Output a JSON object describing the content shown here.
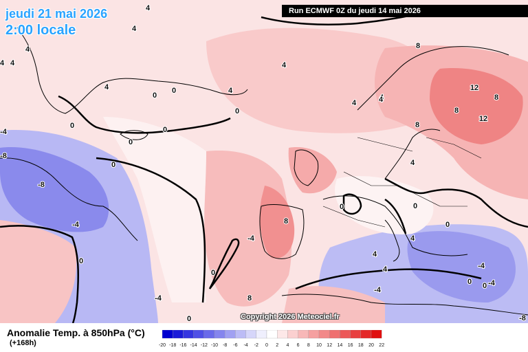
{
  "header": {
    "date": "jeudi 21 mai 2026",
    "time": "2:00 locale",
    "run": "Run ECMWF 0Z du jeudi 14 mai 2026"
  },
  "footer": {
    "title": "Anomalie Temp. à 850hPa (°C)",
    "lead": "(+168h)",
    "copyright": "Copyright 2026 Meteociel.fr"
  },
  "scale": {
    "ticks": [
      "-20",
      "-18",
      "-16",
      "-14",
      "-12",
      "-10",
      "-8",
      "-6",
      "-4",
      "-2",
      "0",
      "2",
      "4",
      "6",
      "8",
      "10",
      "12",
      "14",
      "16",
      "18",
      "20",
      "22"
    ],
    "colors": [
      "#0000d0",
      "#1a1ad8",
      "#3535e0",
      "#5050e6",
      "#6a6aea",
      "#8585ee",
      "#a0a0f2",
      "#bcbcf6",
      "#d6d6fa",
      "#efeffd",
      "#ffffff",
      "#fde8e8",
      "#fbd0d0",
      "#f8b8b8",
      "#f5a0a0",
      "#f28888",
      "#ef7070",
      "#ec5858",
      "#e84040",
      "#e42828",
      "#e01010"
    ]
  },
  "map": {
    "labels": [
      {
        "text": "4"
      },
      {
        "text": "4"
      },
      {
        "text": "4"
      },
      {
        "text": "4"
      },
      {
        "text": "4"
      },
      {
        "text": "4"
      },
      {
        "text": "4"
      },
      {
        "text": "4"
      },
      {
        "text": "4"
      },
      {
        "text": "4"
      },
      {
        "text": "-4"
      },
      {
        "text": "-8"
      },
      {
        "text": "-8"
      },
      {
        "text": "-4"
      },
      {
        "text": "-4"
      },
      {
        "text": "-4"
      },
      {
        "text": "0"
      },
      {
        "text": "0"
      },
      {
        "text": "0"
      },
      {
        "text": "0"
      },
      {
        "text": "0"
      },
      {
        "text": "0"
      },
      {
        "text": "0"
      },
      {
        "text": "0"
      },
      {
        "text": "0"
      },
      {
        "text": "0"
      },
      {
        "text": "0"
      },
      {
        "text": "8"
      },
      {
        "text": "8"
      },
      {
        "text": "8"
      },
      {
        "text": "12"
      },
      {
        "text": "8"
      },
      {
        "text": "12"
      },
      {
        "text": "4"
      },
      {
        "text": "4"
      },
      {
        "text": "8"
      },
      {
        "text": "8"
      },
      {
        "text": "4"
      },
      {
        "text": "0"
      },
      {
        "text": "-4"
      },
      {
        "text": "-4"
      },
      {
        "text": "-4"
      },
      {
        "text": "-8"
      },
      {
        "text": "0"
      },
      {
        "text": "0"
      },
      {
        "text": "0"
      },
      {
        "text": "4"
      },
      {
        "text": "4"
      }
    ]
  }
}
